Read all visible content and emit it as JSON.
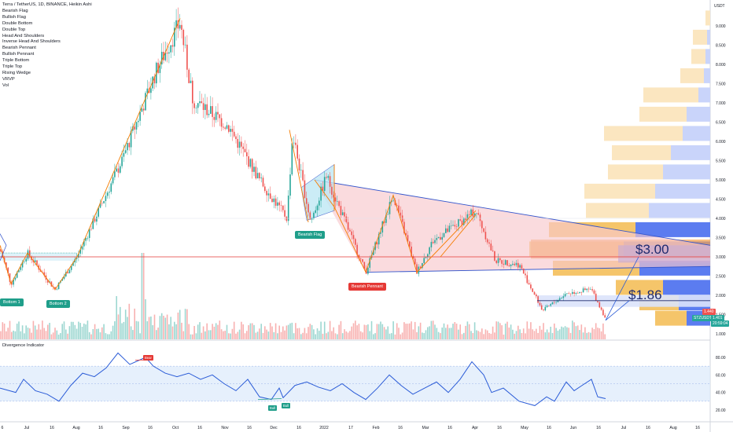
{
  "header": {
    "title": "Terra / TetherUS, 1D, BINANCE, Heikin Ashi",
    "indicators": [
      "Bearish Flag",
      "Bullish Flag",
      "Double Bottom",
      "Double Top",
      "Head And Shoulders",
      "Inverse Head And Shoulders",
      "Bearish Pennant",
      "Bullish Pennant",
      "Triple Bottom",
      "Triple Top",
      "Rising Wedge",
      "VRVP",
      "Vol"
    ]
  },
  "oscillator": {
    "title": "Divergence Indicator",
    "ticks": [
      "80.00",
      "60.00",
      "40.00",
      "20.00"
    ],
    "bear_label": "Bear",
    "bull_labels": [
      "Bull",
      "Bull"
    ]
  },
  "price_axis": {
    "currency": "USDT",
    "ticks": [
      "9.000",
      "8.500",
      "8.000",
      "7.500",
      "7.000",
      "6.500",
      "6.000",
      "5.500",
      "5.000",
      "4.500",
      "4.000",
      "3.500",
      "3.000",
      "2.500",
      "2.000",
      "1.500",
      "1.000"
    ]
  },
  "price_tags": {
    "last": "1.440",
    "symbol": "STZUSDT",
    "close": "1.401",
    "countdown": "20:59:04"
  },
  "time_axis": [
    "6",
    "Jul",
    "16",
    "Aug",
    "16",
    "Sep",
    "16",
    "Oct",
    "16",
    "Nov",
    "16",
    "Dec",
    "16",
    "2022",
    "17",
    "Feb",
    "16",
    "Mar",
    "16",
    "Apr",
    "16",
    "May",
    "16",
    "Jun",
    "16",
    "Jul",
    "16",
    "Aug",
    "16"
  ],
  "pattern_labels": {
    "bottom1": "Bottom 1",
    "bottom2": "Bottom 2",
    "bearish_flag": "Bearish Flag",
    "bearish_pennant": "Bearish Pennant"
  },
  "targets": {
    "t1": "$3.00",
    "t2": "$1.86"
  },
  "colors": {
    "up": "#26a69a",
    "down": "#ef5350",
    "pattern_line": "#f57c00",
    "pennant_fill": "#f8c8cc",
    "pennant_line": "#3355cc",
    "vrvp_up": "#f5c56a",
    "vrvp_down": "#5b7cf0",
    "label_teal": "#1f9e8a",
    "label_red": "#e53935",
    "osc_line": "#2a5bd7",
    "osc_band": "#dbe9fb"
  },
  "chart_data": {
    "type": "candlestick",
    "ylim": [
      0.8,
      9.5
    ],
    "key_price_path": [
      {
        "t": "Jun 2021",
        "price": 3.0
      },
      {
        "t": "early Jul",
        "price": 2.3
      },
      {
        "t": "mid Jul",
        "price": 3.1
      },
      {
        "t": "late Jul",
        "price": 2.1
      },
      {
        "t": "early Aug",
        "price": 3.0
      },
      {
        "t": "late Sep",
        "price": 8.0
      },
      {
        "t": "early Oct",
        "price": 9.2
      },
      {
        "t": "mid Oct",
        "price": 7.0
      },
      {
        "t": "early Nov",
        "price": 6.4
      },
      {
        "t": "early Dec",
        "price": 4.0
      },
      {
        "t": "mid Dec",
        "price": 6.2
      },
      {
        "t": "late Dec",
        "price": 3.9
      },
      {
        "t": "early Jan 2022",
        "price": 5.1
      },
      {
        "t": "late Jan",
        "price": 2.6
      },
      {
        "t": "early Feb",
        "price": 4.6
      },
      {
        "t": "late Feb",
        "price": 2.6
      },
      {
        "t": "early Apr",
        "price": 4.2
      },
      {
        "t": "late Apr",
        "price": 2.9
      },
      {
        "t": "mid May",
        "price": 1.6
      },
      {
        "t": "early Jun",
        "price": 2.1
      },
      {
        "t": "mid Jun",
        "price": 1.4
      }
    ],
    "horizontal_levels": [
      3.0,
      1.86
    ],
    "targets": [
      3.0,
      1.86
    ],
    "oscillator_levels": [
      70,
      50,
      30
    ]
  }
}
